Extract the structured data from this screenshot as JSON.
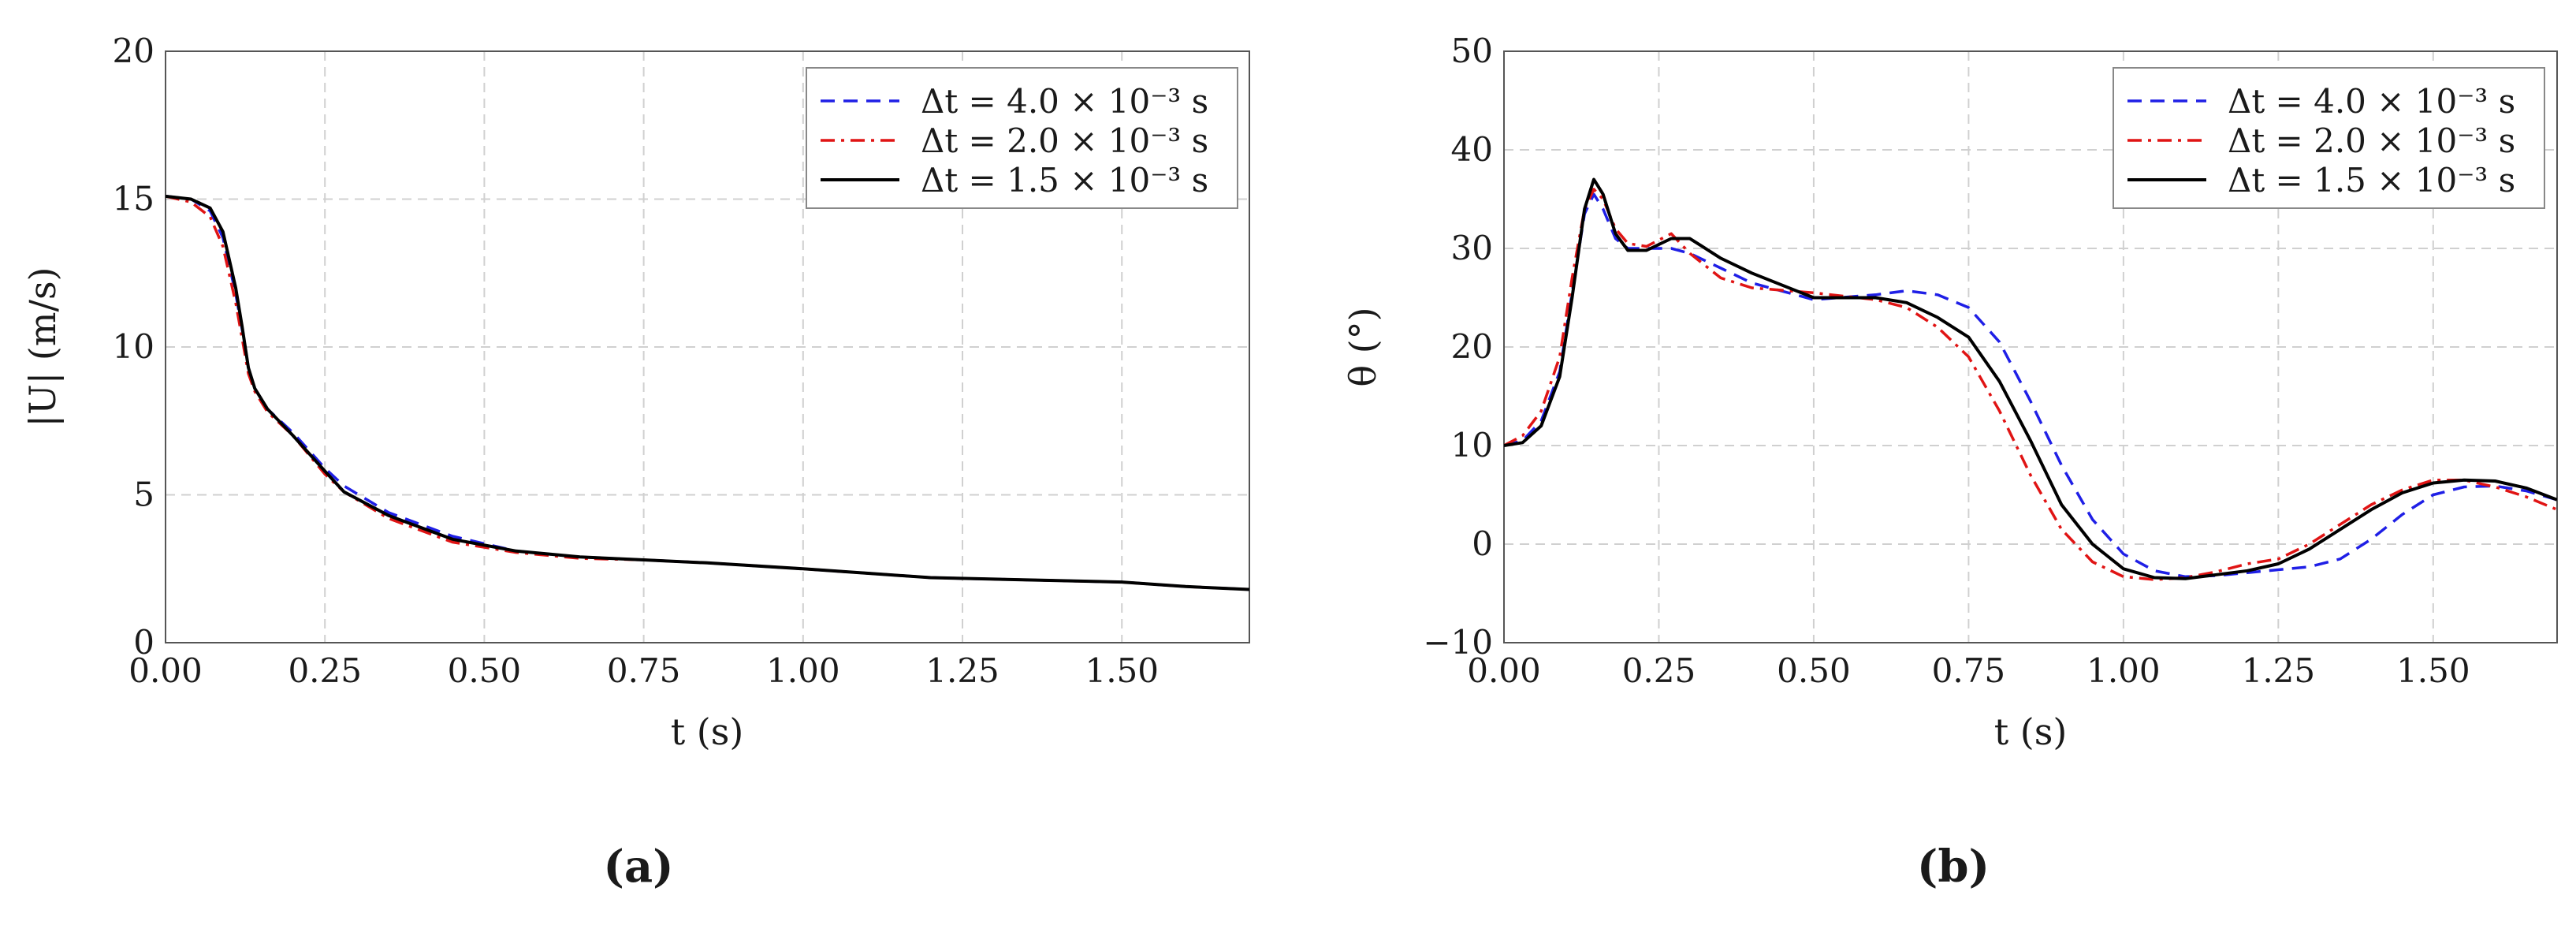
{
  "colors": {
    "dt4": "#1f1fe6",
    "dt2": "#e01414",
    "dt15": "#000000"
  },
  "chart_data": [
    {
      "type": "line",
      "panel_label": "(a)",
      "xlabel": "t (s)",
      "ylabel": "|U| (m/s)",
      "xlim": [
        0,
        1.7
      ],
      "ylim": [
        0,
        20
      ],
      "xticks": [
        "0.00",
        "0.25",
        "0.50",
        "0.75",
        "1.00",
        "1.25",
        "1.50"
      ],
      "xtick_values": [
        0,
        0.25,
        0.5,
        0.75,
        1.0,
        1.25,
        1.5
      ],
      "yticks": [
        "0",
        "5",
        "10",
        "15",
        "20"
      ],
      "ytick_values": [
        0,
        5,
        10,
        15,
        20
      ],
      "grid": true,
      "legend_position": "top-right",
      "series": [
        {
          "name": "Δt = 4.0 × 10⁻³ s",
          "style": "dashed",
          "color": "#1f1fe6",
          "x": [
            0,
            0.04,
            0.07,
            0.09,
            0.11,
            0.12,
            0.13,
            0.14,
            0.16,
            0.2,
            0.25,
            0.28,
            0.35,
            0.45,
            0.55,
            0.65,
            0.75,
            0.85,
            1.0,
            1.1,
            1.2,
            1.3,
            1.4,
            1.5,
            1.6,
            1.7
          ],
          "y": [
            15.1,
            15.0,
            14.6,
            13.7,
            11.8,
            10.6,
            9.3,
            8.6,
            7.9,
            7.1,
            5.9,
            5.3,
            4.4,
            3.6,
            3.1,
            2.9,
            2.8,
            2.7,
            2.5,
            2.35,
            2.2,
            2.15,
            2.1,
            2.05,
            1.9,
            1.8
          ]
        },
        {
          "name": "Δt = 2.0 × 10⁻³ s",
          "style": "dashdot",
          "color": "#e01414",
          "x": [
            0,
            0.04,
            0.07,
            0.09,
            0.11,
            0.12,
            0.13,
            0.14,
            0.16,
            0.2,
            0.25,
            0.28,
            0.35,
            0.45,
            0.55,
            0.65,
            0.75,
            0.85,
            1.0,
            1.1,
            1.2,
            1.3,
            1.4,
            1.5,
            1.6,
            1.7
          ],
          "y": [
            15.1,
            14.9,
            14.4,
            13.4,
            11.5,
            10.3,
            9.1,
            8.5,
            7.8,
            7.0,
            5.7,
            5.1,
            4.2,
            3.4,
            3.05,
            2.85,
            2.8,
            2.7,
            2.5,
            2.35,
            2.2,
            2.15,
            2.1,
            2.05,
            1.9,
            1.8
          ]
        },
        {
          "name": "Δt = 1.5 × 10⁻³ s",
          "style": "solid",
          "color": "#000000",
          "x": [
            0,
            0.04,
            0.07,
            0.09,
            0.11,
            0.12,
            0.13,
            0.14,
            0.16,
            0.2,
            0.25,
            0.28,
            0.35,
            0.45,
            0.55,
            0.65,
            0.75,
            0.85,
            1.0,
            1.1,
            1.2,
            1.3,
            1.4,
            1.5,
            1.6,
            1.7
          ],
          "y": [
            15.1,
            15.0,
            14.7,
            13.9,
            12.0,
            10.7,
            9.3,
            8.6,
            7.9,
            7.0,
            5.8,
            5.1,
            4.3,
            3.5,
            3.1,
            2.9,
            2.8,
            2.7,
            2.5,
            2.35,
            2.2,
            2.15,
            2.1,
            2.05,
            1.9,
            1.8
          ]
        }
      ]
    },
    {
      "type": "line",
      "panel_label": "(b)",
      "xlabel": "t (s)",
      "ylabel": "θ (°)",
      "xlim": [
        0,
        1.7
      ],
      "ylim": [
        -10,
        50
      ],
      "xticks": [
        "0.00",
        "0.25",
        "0.50",
        "0.75",
        "1.00",
        "1.25",
        "1.50"
      ],
      "xtick_values": [
        0,
        0.25,
        0.5,
        0.75,
        1.0,
        1.25,
        1.5
      ],
      "yticks": [
        "−10",
        "0",
        "10",
        "20",
        "30",
        "40",
        "50"
      ],
      "ytick_values": [
        -10,
        0,
        10,
        20,
        30,
        40,
        50
      ],
      "grid": true,
      "legend_position": "top-right",
      "series": [
        {
          "name": "Δt = 4.0 × 10⁻³ s",
          "style": "dashed",
          "color": "#1f1fe6",
          "x": [
            0,
            0.03,
            0.06,
            0.09,
            0.11,
            0.13,
            0.145,
            0.16,
            0.18,
            0.2,
            0.23,
            0.27,
            0.3,
            0.35,
            0.4,
            0.5,
            0.6,
            0.65,
            0.7,
            0.75,
            0.8,
            0.85,
            0.9,
            0.95,
            1.0,
            1.05,
            1.1,
            1.15,
            1.2,
            1.25,
            1.3,
            1.35,
            1.4,
            1.45,
            1.5,
            1.55,
            1.6,
            1.65,
            1.7
          ],
          "y": [
            10.0,
            10.5,
            12.5,
            17.5,
            25.5,
            33.5,
            35.5,
            34.0,
            31.0,
            30.0,
            30.0,
            30.0,
            29.5,
            28.0,
            26.5,
            24.8,
            25.3,
            25.7,
            25.3,
            24.0,
            20.5,
            14.5,
            8.0,
            2.5,
            -1.0,
            -2.7,
            -3.3,
            -3.2,
            -2.9,
            -2.6,
            -2.3,
            -1.5,
            0.5,
            3.0,
            5.0,
            5.8,
            5.9,
            5.4,
            4.5
          ]
        },
        {
          "name": "Δt = 2.0 × 10⁻³ s",
          "style": "dashdot",
          "color": "#e01414",
          "x": [
            0,
            0.03,
            0.06,
            0.09,
            0.11,
            0.13,
            0.145,
            0.16,
            0.18,
            0.2,
            0.23,
            0.27,
            0.3,
            0.35,
            0.4,
            0.5,
            0.6,
            0.65,
            0.7,
            0.75,
            0.8,
            0.85,
            0.9,
            0.95,
            1.0,
            1.05,
            1.1,
            1.15,
            1.2,
            1.25,
            1.3,
            1.35,
            1.4,
            1.45,
            1.5,
            1.55,
            1.6,
            1.65,
            1.7
          ],
          "y": [
            10.0,
            11.0,
            13.5,
            19.0,
            27.0,
            34.0,
            36.0,
            35.0,
            32.0,
            30.5,
            30.2,
            31.5,
            29.5,
            27.0,
            26.0,
            25.5,
            24.8,
            24.0,
            22.0,
            19.0,
            13.5,
            7.0,
            1.5,
            -1.8,
            -3.3,
            -3.6,
            -3.4,
            -2.8,
            -2.0,
            -1.5,
            0.0,
            2.0,
            4.0,
            5.5,
            6.5,
            6.5,
            5.8,
            4.8,
            3.5
          ]
        },
        {
          "name": "Δt = 1.5 × 10⁻³ s",
          "style": "solid",
          "color": "#000000",
          "x": [
            0,
            0.03,
            0.06,
            0.09,
            0.11,
            0.13,
            0.145,
            0.16,
            0.18,
            0.2,
            0.23,
            0.27,
            0.3,
            0.35,
            0.4,
            0.5,
            0.6,
            0.65,
            0.7,
            0.75,
            0.8,
            0.85,
            0.9,
            0.95,
            1.0,
            1.05,
            1.1,
            1.15,
            1.2,
            1.25,
            1.3,
            1.35,
            1.4,
            1.45,
            1.5,
            1.55,
            1.6,
            1.65,
            1.7
          ],
          "y": [
            10.0,
            10.3,
            12.0,
            17.0,
            25.0,
            34.0,
            37.0,
            35.5,
            31.5,
            29.8,
            29.8,
            31.0,
            31.0,
            29.0,
            27.5,
            25.0,
            25.0,
            24.5,
            23.0,
            21.0,
            16.5,
            10.5,
            4.0,
            0.0,
            -2.5,
            -3.4,
            -3.5,
            -3.1,
            -2.7,
            -2.0,
            -0.5,
            1.5,
            3.5,
            5.2,
            6.2,
            6.5,
            6.4,
            5.7,
            4.5
          ]
        }
      ]
    }
  ]
}
